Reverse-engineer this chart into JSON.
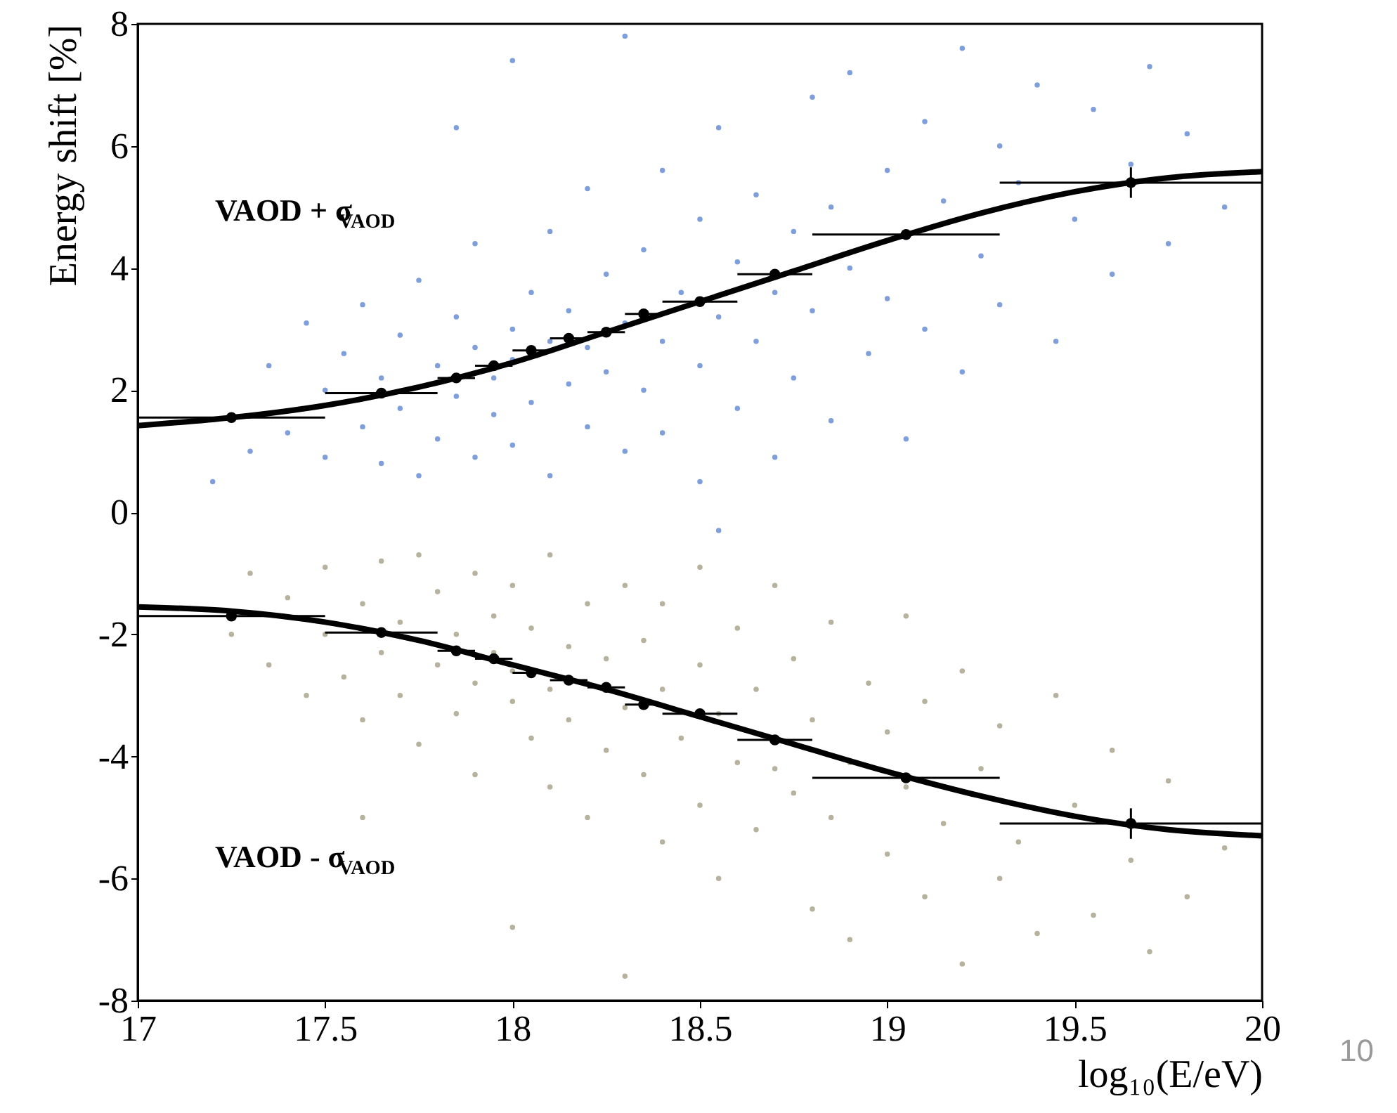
{
  "chart_data": {
    "type": "scatter",
    "xlabel": "log₁₀(E/eV)",
    "ylabel": "Energy shift [%]",
    "xlim": [
      17,
      20
    ],
    "xticks": [
      17,
      17.5,
      18,
      18.5,
      19,
      19.5,
      20
    ],
    "ylim": [
      -8,
      8
    ],
    "yticks": [
      -8,
      -6,
      -4,
      -2,
      0,
      2,
      4,
      6,
      8
    ],
    "grid": false,
    "annotations": [
      "VAOD + σ$_{VAOD}$",
      "VAOD - σ$_{VAOD}$",
      "10"
    ],
    "series": [
      {
        "color": "#7f9fdc",
        "marker": "circle",
        "x": [
          17.2,
          17.3,
          17.35,
          17.4,
          17.45,
          17.5,
          17.5,
          17.55,
          17.6,
          17.6,
          17.65,
          17.65,
          17.7,
          17.7,
          17.75,
          17.75,
          17.8,
          17.8,
          17.85,
          17.85,
          17.9,
          17.9,
          17.9,
          17.95,
          17.95,
          18.0,
          18.0,
          18.0,
          18.05,
          18.05,
          18.1,
          18.1,
          18.1,
          18.15,
          18.15,
          18.2,
          18.2,
          18.2,
          18.25,
          18.25,
          18.3,
          18.3,
          18.35,
          18.35,
          18.4,
          18.4,
          18.4,
          18.45,
          18.5,
          18.5,
          18.5,
          18.55,
          18.55,
          18.6,
          18.6,
          18.65,
          18.65,
          18.7,
          18.7,
          18.75,
          18.75,
          18.8,
          18.8,
          18.85,
          18.85,
          18.9,
          18.9,
          18.95,
          19.0,
          19.0,
          19.05,
          19.05,
          19.1,
          19.1,
          19.15,
          19.2,
          19.2,
          19.25,
          19.3,
          19.3,
          19.35,
          19.4,
          19.45,
          19.5,
          19.55,
          19.6,
          19.65,
          19.7,
          19.75,
          19.8,
          18.0,
          18.3,
          17.85,
          18.55,
          19.9
        ],
        "values": [
          0.5,
          1.0,
          2.4,
          1.3,
          3.1,
          0.9,
          2.0,
          2.6,
          1.4,
          3.4,
          0.8,
          2.2,
          1.7,
          2.9,
          0.6,
          3.8,
          1.2,
          2.4,
          1.9,
          3.2,
          0.9,
          2.7,
          4.4,
          1.6,
          2.2,
          3.0,
          1.1,
          2.5,
          3.6,
          1.8,
          2.8,
          0.6,
          4.6,
          2.1,
          3.3,
          1.4,
          2.7,
          5.3,
          3.9,
          2.3,
          1.0,
          3.1,
          4.3,
          2.0,
          2.8,
          5.6,
          1.3,
          3.6,
          2.4,
          4.8,
          0.5,
          3.2,
          6.3,
          1.7,
          4.1,
          2.8,
          5.2,
          3.6,
          0.9,
          4.6,
          2.2,
          6.8,
          3.3,
          5.0,
          1.5,
          4.0,
          7.2,
          2.6,
          5.6,
          3.5,
          4.5,
          1.2,
          6.4,
          3.0,
          5.1,
          7.6,
          2.3,
          4.2,
          6.0,
          3.4,
          5.4,
          7.0,
          2.8,
          4.8,
          6.6,
          3.9,
          5.7,
          7.3,
          4.4,
          6.2,
          7.4,
          7.8,
          6.3,
          -0.3,
          5.0
        ]
      },
      {
        "color": "#b7b29d",
        "marker": "circle",
        "x": [
          17.3,
          17.35,
          17.4,
          17.45,
          17.5,
          17.5,
          17.55,
          17.6,
          17.6,
          17.65,
          17.65,
          17.7,
          17.7,
          17.75,
          17.75,
          17.8,
          17.8,
          17.85,
          17.85,
          17.9,
          17.9,
          17.9,
          17.95,
          17.95,
          18.0,
          18.0,
          18.0,
          18.05,
          18.05,
          18.1,
          18.1,
          18.1,
          18.15,
          18.15,
          18.2,
          18.2,
          18.2,
          18.25,
          18.25,
          18.3,
          18.3,
          18.35,
          18.35,
          18.4,
          18.4,
          18.4,
          18.45,
          18.5,
          18.5,
          18.5,
          18.55,
          18.55,
          18.6,
          18.6,
          18.65,
          18.65,
          18.7,
          18.7,
          18.75,
          18.75,
          18.8,
          18.8,
          18.85,
          18.85,
          18.9,
          18.9,
          18.95,
          19.0,
          19.0,
          19.05,
          19.05,
          19.1,
          19.1,
          19.15,
          19.2,
          19.2,
          19.25,
          19.3,
          19.3,
          19.35,
          19.4,
          19.45,
          19.5,
          19.55,
          19.6,
          19.65,
          19.7,
          19.75,
          19.8,
          18.0,
          18.3,
          17.6,
          17.25,
          19.9
        ],
        "values": [
          -1.0,
          -2.5,
          -1.4,
          -3.0,
          -0.9,
          -2.0,
          -2.7,
          -1.5,
          -3.4,
          -0.8,
          -2.3,
          -1.8,
          -3.0,
          -0.7,
          -3.8,
          -1.3,
          -2.5,
          -2.0,
          -3.3,
          -1.0,
          -2.8,
          -4.3,
          -1.7,
          -2.3,
          -3.1,
          -1.2,
          -2.6,
          -3.7,
          -1.9,
          -2.9,
          -0.7,
          -4.5,
          -2.2,
          -3.4,
          -1.5,
          -2.8,
          -5.0,
          -3.9,
          -2.4,
          -1.2,
          -3.2,
          -4.3,
          -2.1,
          -2.9,
          -5.4,
          -1.5,
          -3.7,
          -2.5,
          -4.8,
          -0.9,
          -3.3,
          -6.0,
          -1.9,
          -4.1,
          -2.9,
          -5.2,
          -4.2,
          -1.2,
          -4.6,
          -2.4,
          -6.5,
          -3.4,
          -5.0,
          -1.8,
          -4.1,
          -7.0,
          -2.8,
          -5.6,
          -3.6,
          -4.5,
          -1.7,
          -6.3,
          -3.1,
          -5.1,
          -7.4,
          -2.6,
          -4.2,
          -6.0,
          -3.5,
          -5.4,
          -6.9,
          -3.0,
          -4.8,
          -6.6,
          -3.9,
          -5.7,
          -7.2,
          -4.4,
          -6.3,
          -6.8,
          -7.6,
          -5.0,
          -2.0,
          -5.5
        ]
      },
      {
        "type": "line",
        "color": "#000000",
        "line_style": "solid",
        "x": [
          17,
          17.25,
          17.5,
          17.75,
          18,
          18.25,
          18.5,
          18.75,
          19,
          19.25,
          19.5,
          19.75,
          20
        ],
        "values": [
          1.42,
          1.55,
          1.75,
          2.05,
          2.45,
          2.95,
          3.45,
          3.95,
          4.45,
          4.9,
          5.25,
          5.48,
          5.58
        ]
      },
      {
        "type": "line",
        "color": "#000000",
        "line_style": "solid",
        "x": [
          17,
          17.25,
          17.5,
          17.75,
          18,
          18.25,
          18.5,
          18.75,
          19,
          19.25,
          19.5,
          19.75,
          20
        ],
        "values": [
          -1.55,
          -1.62,
          -1.8,
          -2.1,
          -2.5,
          -2.9,
          -3.35,
          -3.8,
          -4.25,
          -4.65,
          -4.98,
          -5.2,
          -5.3
        ]
      },
      {
        "type": "scatter",
        "color": "#000000",
        "marker": "circle",
        "x": [
          17.25,
          17.65,
          17.85,
          17.95,
          18.05,
          18.15,
          18.25,
          18.35,
          18.5,
          18.7,
          19.05,
          19.65
        ],
        "values": [
          1.55,
          1.95,
          2.2,
          2.4,
          2.65,
          2.85,
          2.95,
          3.25,
          3.45,
          3.9,
          4.55,
          5.4
        ],
        "errors": [
          null,
          null,
          null,
          null,
          null,
          null,
          null,
          null,
          null,
          null,
          null,
          0.25
        ],
        "xerrors": [
          [
            17,
            17.5
          ],
          [
            17.5,
            17.8
          ],
          [
            17.8,
            17.9
          ],
          [
            17.9,
            18.0
          ],
          [
            18.0,
            18.1
          ],
          [
            18.1,
            18.2
          ],
          [
            18.2,
            18.3
          ],
          [
            18.3,
            18.4
          ],
          [
            18.4,
            18.6
          ],
          [
            18.6,
            18.8
          ],
          [
            18.8,
            19.3
          ],
          [
            19.3,
            20
          ]
        ]
      },
      {
        "type": "scatter",
        "color": "#000000",
        "marker": "circle",
        "x": [
          17.25,
          17.65,
          17.85,
          17.95,
          18.05,
          18.15,
          18.25,
          18.35,
          18.5,
          18.7,
          19.05,
          19.65
        ],
        "values": [
          -1.7,
          -1.97,
          -2.27,
          -2.4,
          -2.63,
          -2.75,
          -2.87,
          -3.15,
          -3.3,
          -3.73,
          -4.35,
          -5.1
        ],
        "errors": [
          null,
          null,
          null,
          null,
          null,
          null,
          null,
          null,
          null,
          null,
          null,
          0.25
        ],
        "xerrors": [
          [
            17,
            17.5
          ],
          [
            17.5,
            17.8
          ],
          [
            17.8,
            17.9
          ],
          [
            17.9,
            18.0
          ],
          [
            18.0,
            18.1
          ],
          [
            18.1,
            18.2
          ],
          [
            18.2,
            18.3
          ],
          [
            18.3,
            18.4
          ],
          [
            18.4,
            18.6
          ],
          [
            18.6,
            18.8
          ],
          [
            18.8,
            19.3
          ],
          [
            19.3,
            20
          ]
        ]
      }
    ]
  }
}
